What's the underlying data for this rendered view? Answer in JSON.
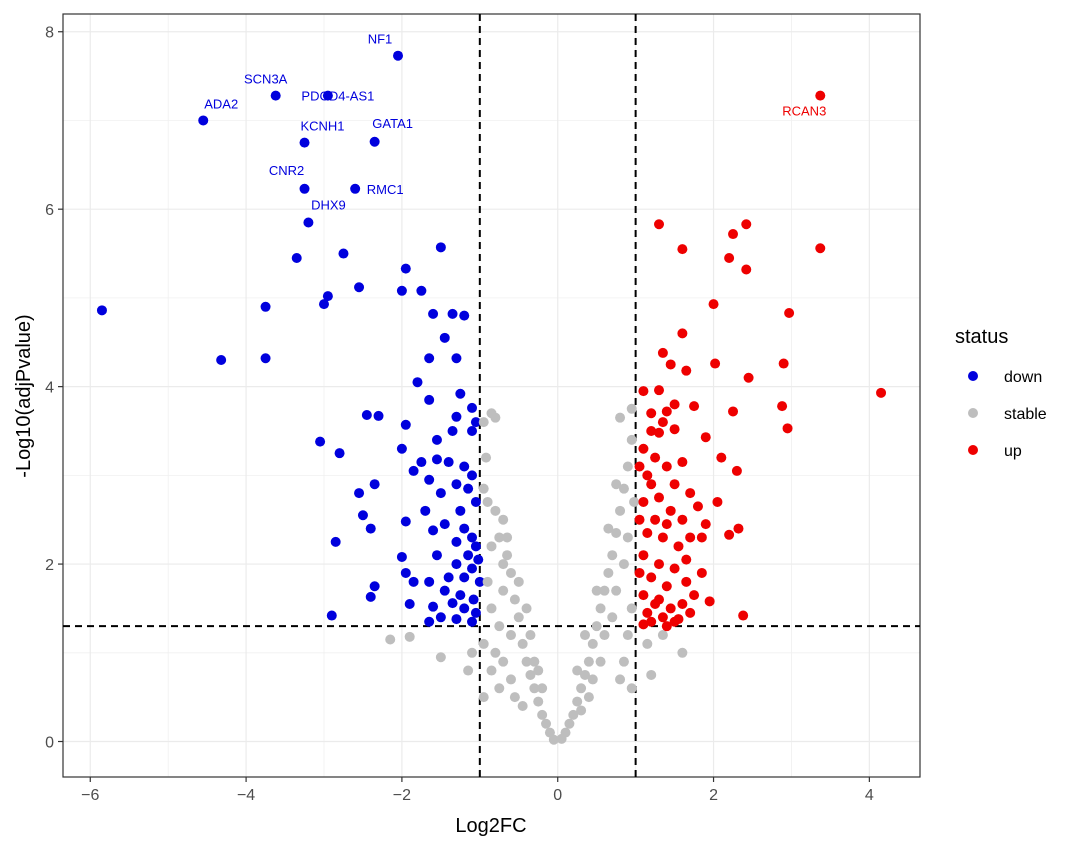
{
  "chart_data": {
    "type": "scatter",
    "xlabel": "Log2FC",
    "ylabel": "-Log10(adjPvalue)",
    "xlim": [
      -6.35,
      4.65
    ],
    "ylim": [
      -0.4,
      8.2
    ],
    "xticks": [
      -6,
      -4,
      -2,
      0,
      2,
      4
    ],
    "yticks": [
      0,
      2,
      4,
      6,
      8
    ],
    "grid": true,
    "thresholds": {
      "x": [
        -1,
        1
      ],
      "y": 1.3
    },
    "legend": {
      "title": "status",
      "placement": "right"
    },
    "colors": {
      "down": "#0000dd",
      "stable": "#bebebe",
      "up": "#ee0000"
    },
    "series": [
      {
        "name": "down",
        "color": "#0000dd",
        "points": [
          [
            -5.85,
            4.86
          ],
          [
            -4.55,
            7.0
          ],
          [
            -4.32,
            4.3
          ],
          [
            -3.75,
            4.9
          ],
          [
            -3.75,
            4.32
          ],
          [
            -3.62,
            7.28
          ],
          [
            -3.35,
            5.45
          ],
          [
            -3.25,
            6.75
          ],
          [
            -3.25,
            6.23
          ],
          [
            -3.2,
            5.85
          ],
          [
            -2.95,
            7.28
          ],
          [
            -2.05,
            7.73
          ],
          [
            -2.35,
            6.76
          ],
          [
            -2.6,
            6.23
          ],
          [
            -2.75,
            5.5
          ],
          [
            -2.55,
            5.12
          ],
          [
            -2.95,
            5.02
          ],
          [
            -3.0,
            4.93
          ],
          [
            -1.95,
            5.33
          ],
          [
            -1.5,
            5.57
          ],
          [
            -2.0,
            5.08
          ],
          [
            -1.75,
            5.08
          ],
          [
            -1.6,
            4.82
          ],
          [
            -1.35,
            4.82
          ],
          [
            -1.2,
            4.8
          ],
          [
            -1.45,
            4.55
          ],
          [
            -1.65,
            4.32
          ],
          [
            -1.3,
            4.32
          ],
          [
            -1.8,
            4.05
          ],
          [
            -1.65,
            3.85
          ],
          [
            -1.25,
            3.92
          ],
          [
            -1.1,
            3.76
          ],
          [
            -1.05,
            3.6
          ],
          [
            -1.1,
            3.5
          ],
          [
            -1.35,
            3.5
          ],
          [
            -1.3,
            3.66
          ],
          [
            -1.55,
            3.4
          ],
          [
            -1.95,
            3.57
          ],
          [
            -2.45,
            3.68
          ],
          [
            -2.3,
            3.67
          ],
          [
            -3.05,
            3.38
          ],
          [
            -2.8,
            3.25
          ],
          [
            -2.0,
            3.3
          ],
          [
            -1.75,
            3.15
          ],
          [
            -1.55,
            3.18
          ],
          [
            -1.4,
            3.15
          ],
          [
            -1.2,
            3.1
          ],
          [
            -1.1,
            3.0
          ],
          [
            -1.85,
            3.05
          ],
          [
            -1.65,
            2.95
          ],
          [
            -1.3,
            2.9
          ],
          [
            -1.5,
            2.8
          ],
          [
            -1.15,
            2.85
          ],
          [
            -1.05,
            2.7
          ],
          [
            -1.25,
            2.6
          ],
          [
            -1.45,
            2.45
          ],
          [
            -1.2,
            2.4
          ],
          [
            -1.1,
            2.3
          ],
          [
            -1.05,
            2.2
          ],
          [
            -1.3,
            2.25
          ],
          [
            -1.6,
            2.38
          ],
          [
            -2.55,
            2.8
          ],
          [
            -2.35,
            2.9
          ],
          [
            -2.4,
            2.4
          ],
          [
            -2.5,
            2.55
          ],
          [
            -1.95,
            2.48
          ],
          [
            -1.55,
            2.1
          ],
          [
            -1.3,
            2.0
          ],
          [
            -1.1,
            1.95
          ],
          [
            -1.2,
            1.85
          ],
          [
            -1.0,
            1.8
          ],
          [
            -1.45,
            1.7
          ],
          [
            -1.65,
            1.8
          ],
          [
            -1.95,
            1.9
          ],
          [
            -2.0,
            2.08
          ],
          [
            -2.35,
            1.75
          ],
          [
            -2.4,
            1.63
          ],
          [
            -1.9,
            1.55
          ],
          [
            -1.6,
            1.52
          ],
          [
            -1.35,
            1.56
          ],
          [
            -1.2,
            1.5
          ],
          [
            -1.05,
            1.45
          ],
          [
            -1.5,
            1.4
          ],
          [
            -1.3,
            1.38
          ],
          [
            -1.1,
            1.35
          ],
          [
            -1.65,
            1.35
          ],
          [
            -2.9,
            1.42
          ],
          [
            -2.85,
            2.25
          ],
          [
            -1.85,
            1.8
          ],
          [
            -1.4,
            1.85
          ],
          [
            -1.15,
            2.1
          ],
          [
            -1.02,
            2.05
          ],
          [
            -1.7,
            2.6
          ],
          [
            -1.25,
            1.65
          ],
          [
            -1.08,
            1.6
          ]
        ]
      },
      {
        "name": "stable",
        "color": "#bebebe",
        "points": [
          [
            -0.95,
            3.6
          ],
          [
            -0.92,
            3.2
          ],
          [
            -0.95,
            2.85
          ],
          [
            -0.9,
            2.7
          ],
          [
            -0.8,
            2.6
          ],
          [
            -0.7,
            2.5
          ],
          [
            -0.75,
            2.3
          ],
          [
            -0.65,
            2.1
          ],
          [
            -0.85,
            2.2
          ],
          [
            -0.6,
            1.9
          ],
          [
            -0.7,
            1.7
          ],
          [
            -0.55,
            1.6
          ],
          [
            -0.5,
            1.4
          ],
          [
            -0.6,
            1.2
          ],
          [
            -0.45,
            1.1
          ],
          [
            -0.4,
            0.9
          ],
          [
            -0.35,
            0.75
          ],
          [
            -0.3,
            0.6
          ],
          [
            -0.25,
            0.45
          ],
          [
            -0.2,
            0.3
          ],
          [
            -0.15,
            0.2
          ],
          [
            -0.1,
            0.1
          ],
          [
            -0.05,
            0.02
          ],
          [
            -0.85,
            1.5
          ],
          [
            -0.75,
            1.3
          ],
          [
            -0.9,
            1.8
          ],
          [
            -0.8,
            1.0
          ],
          [
            -0.7,
            0.9
          ],
          [
            -0.6,
            0.7
          ],
          [
            -0.55,
            0.5
          ],
          [
            -0.45,
            0.4
          ],
          [
            -0.95,
            1.1
          ],
          [
            -0.85,
            0.8
          ],
          [
            -0.75,
            0.6
          ],
          [
            -0.95,
            0.5
          ],
          [
            -1.1,
            1.0
          ],
          [
            -1.5,
            0.95
          ],
          [
            -1.9,
            1.18
          ],
          [
            -2.15,
            1.15
          ],
          [
            -1.15,
            0.8
          ],
          [
            -0.8,
            3.65
          ],
          [
            -0.85,
            3.7
          ],
          [
            -0.35,
            1.2
          ],
          [
            -0.3,
            0.9
          ],
          [
            -0.2,
            0.6
          ],
          [
            -0.25,
            0.8
          ],
          [
            -0.4,
            1.5
          ],
          [
            -0.5,
            1.8
          ],
          [
            -0.65,
            2.3
          ],
          [
            -0.7,
            2.0
          ],
          [
            0.05,
            0.03
          ],
          [
            0.1,
            0.1
          ],
          [
            0.15,
            0.2
          ],
          [
            0.2,
            0.3
          ],
          [
            0.25,
            0.45
          ],
          [
            0.3,
            0.6
          ],
          [
            0.35,
            0.75
          ],
          [
            0.4,
            0.9
          ],
          [
            0.45,
            1.1
          ],
          [
            0.5,
            1.3
          ],
          [
            0.55,
            1.5
          ],
          [
            0.6,
            1.7
          ],
          [
            0.65,
            1.9
          ],
          [
            0.7,
            2.1
          ],
          [
            0.75,
            2.35
          ],
          [
            0.8,
            2.6
          ],
          [
            0.85,
            2.85
          ],
          [
            0.9,
            3.1
          ],
          [
            0.95,
            3.4
          ],
          [
            0.8,
            3.65
          ],
          [
            0.95,
            3.75
          ],
          [
            0.9,
            2.3
          ],
          [
            0.85,
            2.0
          ],
          [
            0.75,
            1.7
          ],
          [
            0.7,
            1.4
          ],
          [
            0.6,
            1.2
          ],
          [
            0.55,
            0.9
          ],
          [
            0.45,
            0.7
          ],
          [
            0.4,
            0.5
          ],
          [
            0.3,
            0.35
          ],
          [
            0.95,
            1.5
          ],
          [
            0.9,
            1.2
          ],
          [
            0.85,
            0.9
          ],
          [
            0.8,
            0.7
          ],
          [
            0.95,
            0.6
          ],
          [
            1.15,
            1.1
          ],
          [
            1.35,
            1.2
          ],
          [
            1.6,
            1.0
          ],
          [
            1.2,
            0.75
          ],
          [
            0.98,
            2.7
          ],
          [
            0.35,
            1.2
          ],
          [
            0.25,
            0.8
          ],
          [
            0.5,
            1.7
          ],
          [
            0.65,
            2.4
          ],
          [
            0.75,
            2.9
          ]
        ]
      },
      {
        "name": "up",
        "color": "#ee0000",
        "points": [
          [
            3.37,
            7.28
          ],
          [
            1.3,
            5.83
          ],
          [
            1.6,
            5.55
          ],
          [
            2.25,
            5.72
          ],
          [
            2.42,
            5.83
          ],
          [
            3.37,
            5.56
          ],
          [
            2.2,
            5.45
          ],
          [
            2.42,
            5.32
          ],
          [
            2.0,
            4.93
          ],
          [
            2.97,
            4.83
          ],
          [
            1.6,
            4.6
          ],
          [
            1.35,
            4.38
          ],
          [
            1.45,
            4.25
          ],
          [
            1.65,
            4.18
          ],
          [
            2.02,
            4.26
          ],
          [
            2.9,
            4.26
          ],
          [
            2.45,
            4.1
          ],
          [
            4.15,
            3.93
          ],
          [
            1.1,
            3.95
          ],
          [
            1.3,
            3.96
          ],
          [
            1.5,
            3.8
          ],
          [
            1.2,
            3.7
          ],
          [
            1.4,
            3.72
          ],
          [
            1.75,
            3.78
          ],
          [
            2.88,
            3.78
          ],
          [
            2.25,
            3.72
          ],
          [
            1.35,
            3.6
          ],
          [
            1.2,
            3.5
          ],
          [
            1.5,
            3.52
          ],
          [
            1.3,
            3.48
          ],
          [
            1.1,
            3.3
          ],
          [
            1.9,
            3.43
          ],
          [
            2.95,
            3.53
          ],
          [
            2.1,
            3.2
          ],
          [
            2.3,
            3.05
          ],
          [
            1.4,
            3.1
          ],
          [
            1.6,
            3.15
          ],
          [
            1.25,
            3.2
          ],
          [
            1.15,
            3.0
          ],
          [
            1.5,
            2.9
          ],
          [
            1.3,
            2.75
          ],
          [
            1.7,
            2.8
          ],
          [
            1.1,
            2.7
          ],
          [
            1.45,
            2.6
          ],
          [
            1.25,
            2.5
          ],
          [
            1.6,
            2.5
          ],
          [
            1.8,
            2.65
          ],
          [
            2.05,
            2.7
          ],
          [
            1.15,
            2.35
          ],
          [
            1.35,
            2.3
          ],
          [
            1.55,
            2.2
          ],
          [
            1.7,
            2.3
          ],
          [
            1.1,
            2.1
          ],
          [
            1.3,
            2.0
          ],
          [
            1.5,
            1.95
          ],
          [
            1.2,
            1.85
          ],
          [
            1.4,
            1.75
          ],
          [
            1.65,
            1.8
          ],
          [
            1.85,
            1.9
          ],
          [
            1.1,
            1.65
          ],
          [
            1.25,
            1.55
          ],
          [
            1.45,
            1.5
          ],
          [
            1.6,
            1.55
          ],
          [
            1.15,
            1.45
          ],
          [
            1.35,
            1.4
          ],
          [
            1.5,
            1.35
          ],
          [
            1.75,
            1.65
          ],
          [
            1.95,
            1.58
          ],
          [
            2.2,
            2.33
          ],
          [
            2.32,
            2.4
          ],
          [
            2.38,
            1.42
          ],
          [
            1.2,
            1.35
          ],
          [
            1.4,
            1.3
          ],
          [
            1.1,
            1.32
          ],
          [
            1.55,
            1.38
          ],
          [
            1.3,
            1.6
          ],
          [
            1.7,
            1.45
          ],
          [
            1.05,
            1.9
          ],
          [
            1.05,
            2.5
          ],
          [
            1.05,
            3.1
          ],
          [
            1.85,
            2.3
          ],
          [
            1.65,
            2.05
          ],
          [
            1.9,
            2.45
          ],
          [
            1.2,
            2.9
          ],
          [
            1.4,
            2.45
          ]
        ]
      }
    ],
    "labels": [
      {
        "text": "NF1",
        "x": -2.05,
        "y": 7.73,
        "series": "down"
      },
      {
        "text": "SCN3A",
        "x": -3.62,
        "y": 7.28,
        "series": "down"
      },
      {
        "text": "PDCD4-AS1",
        "x": -2.95,
        "y": 7.28,
        "series": "down"
      },
      {
        "text": "ADA2",
        "x": -4.55,
        "y": 7.0,
        "series": "down"
      },
      {
        "text": "KCNH1",
        "x": -3.25,
        "y": 6.75,
        "series": "down"
      },
      {
        "text": "GATA1",
        "x": -2.35,
        "y": 6.76,
        "series": "down"
      },
      {
        "text": "CNR2",
        "x": -3.25,
        "y": 6.23,
        "series": "down"
      },
      {
        "text": "RMC1",
        "x": -2.6,
        "y": 6.23,
        "series": "down"
      },
      {
        "text": "DHX9",
        "x": -3.2,
        "y": 5.85,
        "series": "down"
      },
      {
        "text": "RCAN3",
        "x": 3.37,
        "y": 7.28,
        "series": "up"
      }
    ]
  }
}
